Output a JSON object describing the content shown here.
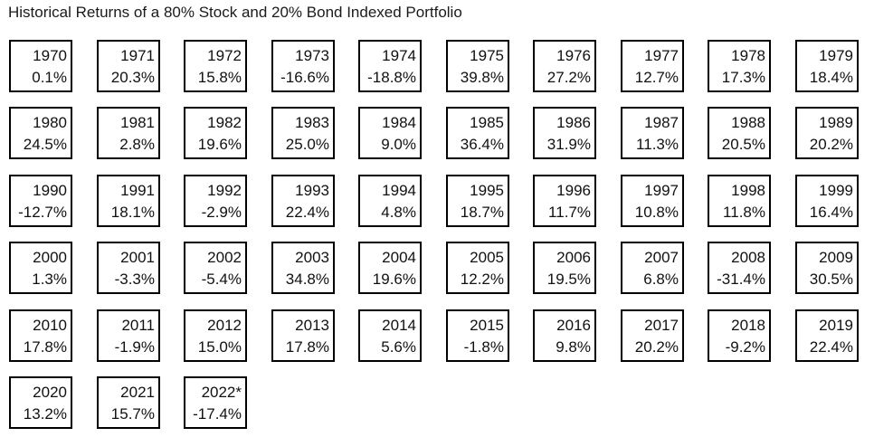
{
  "title": "Historical Returns of a 80% Stock and 20% Bond Indexed Portfolio",
  "chart_data": {
    "type": "table",
    "title": "Historical Returns of a 80% Stock and 20% Bond Indexed Portfolio",
    "cells": [
      {
        "year": "1970",
        "ret": "0.1%",
        "value": 0.1
      },
      {
        "year": "1971",
        "ret": "20.3%",
        "value": 20.3
      },
      {
        "year": "1972",
        "ret": "15.8%",
        "value": 15.8
      },
      {
        "year": "1973",
        "ret": "-16.6%",
        "value": -16.6
      },
      {
        "year": "1974",
        "ret": "-18.8%",
        "value": -18.8
      },
      {
        "year": "1975",
        "ret": "39.8%",
        "value": 39.8
      },
      {
        "year": "1976",
        "ret": "27.2%",
        "value": 27.2
      },
      {
        "year": "1977",
        "ret": "12.7%",
        "value": 12.7
      },
      {
        "year": "1978",
        "ret": "17.3%",
        "value": 17.3
      },
      {
        "year": "1979",
        "ret": "18.4%",
        "value": 18.4
      },
      {
        "year": "1980",
        "ret": "24.5%",
        "value": 24.5
      },
      {
        "year": "1981",
        "ret": "2.8%",
        "value": 2.8
      },
      {
        "year": "1982",
        "ret": "19.6%",
        "value": 19.6
      },
      {
        "year": "1983",
        "ret": "25.0%",
        "value": 25.0
      },
      {
        "year": "1984",
        "ret": "9.0%",
        "value": 9.0
      },
      {
        "year": "1985",
        "ret": "36.4%",
        "value": 36.4
      },
      {
        "year": "1986",
        "ret": "31.9%",
        "value": 31.9
      },
      {
        "year": "1987",
        "ret": "11.3%",
        "value": 11.3
      },
      {
        "year": "1988",
        "ret": "20.5%",
        "value": 20.5
      },
      {
        "year": "1989",
        "ret": "20.2%",
        "value": 20.2
      },
      {
        "year": "1990",
        "ret": "-12.7%",
        "value": -12.7
      },
      {
        "year": "1991",
        "ret": "18.1%",
        "value": 18.1
      },
      {
        "year": "1992",
        "ret": "-2.9%",
        "value": -2.9
      },
      {
        "year": "1993",
        "ret": "22.4%",
        "value": 22.4
      },
      {
        "year": "1994",
        "ret": "4.8%",
        "value": 4.8
      },
      {
        "year": "1995",
        "ret": "18.7%",
        "value": 18.7
      },
      {
        "year": "1996",
        "ret": "11.7%",
        "value": 11.7
      },
      {
        "year": "1997",
        "ret": "10.8%",
        "value": 10.8
      },
      {
        "year": "1998",
        "ret": "11.8%",
        "value": 11.8
      },
      {
        "year": "1999",
        "ret": "16.4%",
        "value": 16.4
      },
      {
        "year": "2000",
        "ret": "1.3%",
        "value": 1.3
      },
      {
        "year": "2001",
        "ret": "-3.3%",
        "value": -3.3
      },
      {
        "year": "2002",
        "ret": "-5.4%",
        "value": -5.4
      },
      {
        "year": "2003",
        "ret": "34.8%",
        "value": 34.8
      },
      {
        "year": "2004",
        "ret": "19.6%",
        "value": 19.6
      },
      {
        "year": "2005",
        "ret": "12.2%",
        "value": 12.2
      },
      {
        "year": "2006",
        "ret": "19.5%",
        "value": 19.5
      },
      {
        "year": "2007",
        "ret": "6.8%",
        "value": 6.8
      },
      {
        "year": "2008",
        "ret": "-31.4%",
        "value": -31.4
      },
      {
        "year": "2009",
        "ret": "30.5%",
        "value": 30.5
      },
      {
        "year": "2010",
        "ret": "17.8%",
        "value": 17.8
      },
      {
        "year": "2011",
        "ret": "-1.9%",
        "value": -1.9
      },
      {
        "year": "2012",
        "ret": "15.0%",
        "value": 15.0
      },
      {
        "year": "2013",
        "ret": "17.8%",
        "value": 17.8
      },
      {
        "year": "2014",
        "ret": "5.6%",
        "value": 5.6
      },
      {
        "year": "2015",
        "ret": "-1.8%",
        "value": -1.8
      },
      {
        "year": "2016",
        "ret": "9.8%",
        "value": 9.8
      },
      {
        "year": "2017",
        "ret": "20.2%",
        "value": 20.2
      },
      {
        "year": "2018",
        "ret": "-9.2%",
        "value": -9.2
      },
      {
        "year": "2019",
        "ret": "22.4%",
        "value": 22.4
      },
      {
        "year": "2020",
        "ret": "13.2%",
        "value": 13.2
      },
      {
        "year": "2021",
        "ret": "15.7%",
        "value": 15.7
      },
      {
        "year": "2022*",
        "ret": "-17.4%",
        "value": -17.4
      }
    ]
  }
}
